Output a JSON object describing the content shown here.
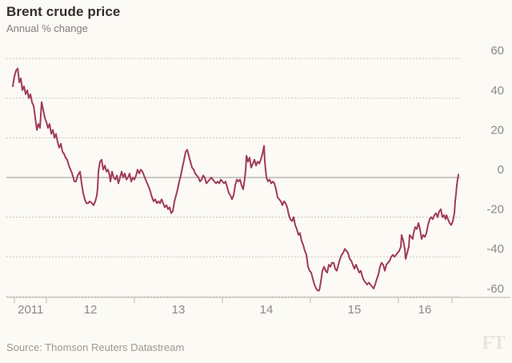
{
  "header": {
    "title": "Brent crude price",
    "subtitle": "Annual % change"
  },
  "footer": {
    "source": "Source: Thomson Reuters Datastream",
    "logo": "FT"
  },
  "colors": {
    "background": "#fcfaf5",
    "line": "#a03a5c",
    "grid_dotted": "#ccc7bf",
    "zero_line": "#97948c",
    "axis_line": "#c8c4bb",
    "tick_label": "#8c8983",
    "title": "#33302b",
    "subtitle": "#817e78",
    "source": "#9c9991",
    "logo": "#e7e4dc"
  },
  "chart_data": {
    "type": "line",
    "title": "Brent crude price",
    "subtitle": "Annual % change",
    "source": "Source: Thomson Reuters Datastream",
    "grid": "dotted horizontal",
    "legend": "none",
    "x_axis": {
      "range_t": [
        2011.545,
        2016.7
      ],
      "ticks_t": [
        2011.636,
        2012,
        2013,
        2014,
        2015,
        2016,
        2016.609
      ],
      "labels": [
        {
          "text": "2011",
          "t": 2011.82
        },
        {
          "text": "12",
          "t": 2012.5
        },
        {
          "text": "13",
          "t": 2013.5
        },
        {
          "text": "14",
          "t": 2014.5
        },
        {
          "text": "15",
          "t": 2015.5
        },
        {
          "text": "16",
          "t": 2016.3
        }
      ]
    },
    "y_axis": {
      "ylim": [
        -62,
        62
      ],
      "ticks": [
        60,
        40,
        20,
        0,
        -20,
        -40,
        -60
      ],
      "side": "right"
    },
    "series": [
      {
        "name": "Brent crude price annual % change",
        "color": "#a03a5c",
        "points": [
          [
            2011.618,
            46
          ],
          [
            2011.636,
            51
          ],
          [
            2011.655,
            54
          ],
          [
            2011.673,
            55
          ],
          [
            2011.691,
            48
          ],
          [
            2011.709,
            50
          ],
          [
            2011.727,
            44
          ],
          [
            2011.745,
            46
          ],
          [
            2011.764,
            42
          ],
          [
            2011.782,
            44
          ],
          [
            2011.8,
            40
          ],
          [
            2011.818,
            42
          ],
          [
            2011.836,
            38
          ],
          [
            2011.855,
            36
          ],
          [
            2011.873,
            30
          ],
          [
            2011.891,
            24
          ],
          [
            2011.909,
            27
          ],
          [
            2011.927,
            25
          ],
          [
            2011.945,
            38
          ],
          [
            2011.964,
            34
          ],
          [
            2011.982,
            30
          ],
          [
            2012.0,
            28
          ],
          [
            2012.018,
            25
          ],
          [
            2012.036,
            27
          ],
          [
            2012.055,
            22
          ],
          [
            2012.073,
            24
          ],
          [
            2012.091,
            20
          ],
          [
            2012.109,
            22
          ],
          [
            2012.127,
            18
          ],
          [
            2012.145,
            15
          ],
          [
            2012.164,
            17
          ],
          [
            2012.182,
            13
          ],
          [
            2012.2,
            12
          ],
          [
            2012.218,
            10
          ],
          [
            2012.236,
            9
          ],
          [
            2012.255,
            6
          ],
          [
            2012.273,
            4
          ],
          [
            2012.291,
            2
          ],
          [
            2012.318,
            -2
          ],
          [
            2012.336,
            -2
          ],
          [
            2012.355,
            1
          ],
          [
            2012.382,
            3
          ],
          [
            2012.4,
            -3
          ],
          [
            2012.418,
            -8
          ],
          [
            2012.436,
            -11
          ],
          [
            2012.455,
            -13
          ],
          [
            2012.473,
            -13
          ],
          [
            2012.491,
            -12
          ],
          [
            2012.518,
            -13
          ],
          [
            2012.536,
            -14
          ],
          [
            2012.555,
            -12
          ],
          [
            2012.573,
            -9
          ],
          [
            2012.582,
            -5
          ],
          [
            2012.591,
            3
          ],
          [
            2012.609,
            8
          ],
          [
            2012.627,
            9
          ],
          [
            2012.645,
            4
          ],
          [
            2012.664,
            6
          ],
          [
            2012.682,
            3
          ],
          [
            2012.7,
            4
          ],
          [
            2012.718,
            1
          ],
          [
            2012.727,
            -2
          ],
          [
            2012.745,
            3
          ],
          [
            2012.764,
            0
          ],
          [
            2012.782,
            -1
          ],
          [
            2012.8,
            1
          ],
          [
            2012.818,
            -3
          ],
          [
            2012.836,
            0
          ],
          [
            2012.855,
            3
          ],
          [
            2012.873,
            0
          ],
          [
            2012.891,
            2
          ],
          [
            2012.909,
            -1
          ],
          [
            2012.927,
            0
          ],
          [
            2012.945,
            2
          ],
          [
            2012.964,
            -2
          ],
          [
            2012.982,
            0
          ],
          [
            2013.0,
            -1
          ],
          [
            2013.018,
            1
          ],
          [
            2013.036,
            4
          ],
          [
            2013.055,
            2
          ],
          [
            2013.073,
            4
          ],
          [
            2013.091,
            3
          ],
          [
            2013.109,
            1
          ],
          [
            2013.136,
            -2
          ],
          [
            2013.155,
            -4
          ],
          [
            2013.173,
            -6
          ],
          [
            2013.2,
            -10
          ],
          [
            2013.218,
            -12
          ],
          [
            2013.236,
            -11
          ],
          [
            2013.255,
            -13
          ],
          [
            2013.273,
            -12
          ],
          [
            2013.291,
            -13
          ],
          [
            2013.309,
            -11
          ],
          [
            2013.327,
            -13
          ],
          [
            2013.345,
            -15
          ],
          [
            2013.364,
            -14
          ],
          [
            2013.382,
            -16
          ],
          [
            2013.4,
            -15
          ],
          [
            2013.418,
            -18
          ],
          [
            2013.436,
            -17
          ],
          [
            2013.455,
            -12
          ],
          [
            2013.473,
            -9
          ],
          [
            2013.491,
            -6
          ],
          [
            2013.509,
            -2
          ],
          [
            2013.527,
            1
          ],
          [
            2013.545,
            5
          ],
          [
            2013.564,
            9
          ],
          [
            2013.582,
            13
          ],
          [
            2013.6,
            14
          ],
          [
            2013.618,
            11
          ],
          [
            2013.636,
            8
          ],
          [
            2013.655,
            5
          ],
          [
            2013.673,
            4
          ],
          [
            2013.691,
            2
          ],
          [
            2013.709,
            1
          ],
          [
            2013.727,
            0
          ],
          [
            2013.745,
            -2
          ],
          [
            2013.764,
            -1
          ],
          [
            2013.782,
            1
          ],
          [
            2013.8,
            0
          ],
          [
            2013.818,
            -3
          ],
          [
            2013.836,
            -2
          ],
          [
            2013.855,
            -1
          ],
          [
            2013.873,
            0
          ],
          [
            2013.891,
            -1
          ],
          [
            2013.909,
            -2
          ],
          [
            2013.927,
            -3
          ],
          [
            2013.945,
            -2
          ],
          [
            2013.964,
            -3
          ],
          [
            2013.982,
            -1
          ],
          [
            2014.0,
            -2
          ],
          [
            2014.018,
            -3
          ],
          [
            2014.036,
            -2
          ],
          [
            2014.055,
            -5
          ],
          [
            2014.073,
            -8
          ],
          [
            2014.091,
            -9
          ],
          [
            2014.109,
            -11
          ],
          [
            2014.127,
            -9
          ],
          [
            2014.145,
            -4
          ],
          [
            2014.164,
            -1
          ],
          [
            2014.182,
            -2
          ],
          [
            2014.2,
            -1
          ],
          [
            2014.218,
            -4
          ],
          [
            2014.236,
            -6
          ],
          [
            2014.255,
            0
          ],
          [
            2014.264,
            4
          ],
          [
            2014.273,
            11
          ],
          [
            2014.291,
            8
          ],
          [
            2014.309,
            10
          ],
          [
            2014.327,
            5
          ],
          [
            2014.345,
            7
          ],
          [
            2014.364,
            9
          ],
          [
            2014.382,
            6
          ],
          [
            2014.4,
            8
          ],
          [
            2014.418,
            7
          ],
          [
            2014.436,
            9
          ],
          [
            2014.455,
            12
          ],
          [
            2014.473,
            16
          ],
          [
            2014.482,
            8
          ],
          [
            2014.5,
            0
          ],
          [
            2014.518,
            -2
          ],
          [
            2014.536,
            -1
          ],
          [
            2014.555,
            -3
          ],
          [
            2014.573,
            -2
          ],
          [
            2014.591,
            -3
          ],
          [
            2014.609,
            -6
          ],
          [
            2014.627,
            -10
          ],
          [
            2014.645,
            -11
          ],
          [
            2014.664,
            -12
          ],
          [
            2014.682,
            -14
          ],
          [
            2014.7,
            -12
          ],
          [
            2014.718,
            -13
          ],
          [
            2014.736,
            -15
          ],
          [
            2014.755,
            -19
          ],
          [
            2014.773,
            -21
          ],
          [
            2014.791,
            -22
          ],
          [
            2014.809,
            -20
          ],
          [
            2014.827,
            -24
          ],
          [
            2014.845,
            -26
          ],
          [
            2014.864,
            -29
          ],
          [
            2014.882,
            -28
          ],
          [
            2014.9,
            -32
          ],
          [
            2014.918,
            -34
          ],
          [
            2014.936,
            -37
          ],
          [
            2014.955,
            -39
          ],
          [
            2014.973,
            -45
          ],
          [
            2014.991,
            -47
          ],
          [
            2015.009,
            -48
          ],
          [
            2015.027,
            -51
          ],
          [
            2015.045,
            -54
          ],
          [
            2015.064,
            -56
          ],
          [
            2015.082,
            -57
          ],
          [
            2015.1,
            -57
          ],
          [
            2015.109,
            -55
          ],
          [
            2015.127,
            -50
          ],
          [
            2015.136,
            -47
          ],
          [
            2015.155,
            -45
          ],
          [
            2015.173,
            -47
          ],
          [
            2015.191,
            -48
          ],
          [
            2015.209,
            -44
          ],
          [
            2015.227,
            -45
          ],
          [
            2015.245,
            -43
          ],
          [
            2015.264,
            -43
          ],
          [
            2015.282,
            -46
          ],
          [
            2015.3,
            -47
          ],
          [
            2015.318,
            -44
          ],
          [
            2015.336,
            -41
          ],
          [
            2015.355,
            -39
          ],
          [
            2015.373,
            -38
          ],
          [
            2015.391,
            -36
          ],
          [
            2015.409,
            -37
          ],
          [
            2015.427,
            -38
          ],
          [
            2015.445,
            -41
          ],
          [
            2015.464,
            -42
          ],
          [
            2015.482,
            -44
          ],
          [
            2015.5,
            -46
          ],
          [
            2015.518,
            -44
          ],
          [
            2015.536,
            -46
          ],
          [
            2015.555,
            -48
          ],
          [
            2015.573,
            -47
          ],
          [
            2015.591,
            -50
          ],
          [
            2015.609,
            -52
          ],
          [
            2015.627,
            -53
          ],
          [
            2015.645,
            -54
          ],
          [
            2015.664,
            -53
          ],
          [
            2015.682,
            -54
          ],
          [
            2015.7,
            -55
          ],
          [
            2015.718,
            -56
          ],
          [
            2015.736,
            -54
          ],
          [
            2015.755,
            -51
          ],
          [
            2015.773,
            -49
          ],
          [
            2015.791,
            -45
          ],
          [
            2015.809,
            -43
          ],
          [
            2015.827,
            -44
          ],
          [
            2015.845,
            -47
          ],
          [
            2015.864,
            -44
          ],
          [
            2015.882,
            -43
          ],
          [
            2015.9,
            -42
          ],
          [
            2015.918,
            -40
          ],
          [
            2015.936,
            -39
          ],
          [
            2015.955,
            -40
          ],
          [
            2015.973,
            -39
          ],
          [
            2015.991,
            -38
          ],
          [
            2016.009,
            -37
          ],
          [
            2016.027,
            -35
          ],
          [
            2016.036,
            -29
          ],
          [
            2016.055,
            -32
          ],
          [
            2016.073,
            -36
          ],
          [
            2016.082,
            -41
          ],
          [
            2016.1,
            -38
          ],
          [
            2016.118,
            -35
          ],
          [
            2016.127,
            -29
          ],
          [
            2016.145,
            -30
          ],
          [
            2016.164,
            -31
          ],
          [
            2016.173,
            -28
          ],
          [
            2016.191,
            -25
          ],
          [
            2016.209,
            -26
          ],
          [
            2016.227,
            -23
          ],
          [
            2016.245,
            -26
          ],
          [
            2016.264,
            -31
          ],
          [
            2016.282,
            -29
          ],
          [
            2016.3,
            -30
          ],
          [
            2016.318,
            -28
          ],
          [
            2016.336,
            -24
          ],
          [
            2016.355,
            -21
          ],
          [
            2016.373,
            -20
          ],
          [
            2016.391,
            -21
          ],
          [
            2016.409,
            -19
          ],
          [
            2016.427,
            -18
          ],
          [
            2016.445,
            -20
          ],
          [
            2016.464,
            -17
          ],
          [
            2016.482,
            -16
          ],
          [
            2016.5,
            -20
          ],
          [
            2016.518,
            -19
          ],
          [
            2016.536,
            -21
          ],
          [
            2016.545,
            -19
          ],
          [
            2016.564,
            -21
          ],
          [
            2016.582,
            -23
          ],
          [
            2016.6,
            -24
          ],
          [
            2016.618,
            -22
          ],
          [
            2016.636,
            -18
          ],
          [
            2016.645,
            -12
          ],
          [
            2016.655,
            -8
          ],
          [
            2016.664,
            -4
          ],
          [
            2016.673,
            -1
          ],
          [
            2016.682,
            1.5
          ]
        ]
      }
    ]
  }
}
